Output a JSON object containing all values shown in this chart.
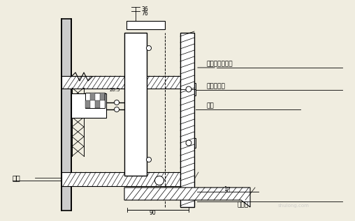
{
  "bg_color": "#f0ede0",
  "line_color": "#000000",
  "annotations": {
    "label1": "邻近头角现浇柱",
    "label2": "石材龙骨线",
    "label3": "法框",
    "label5": "密封胶",
    "label6": "盲丁",
    "dim1": "36",
    "dim2": "76",
    "dim3": "20.5",
    "dim4": "90",
    "dim5": "1厚"
  },
  "figsize": [
    5.08,
    3.17
  ],
  "dpi": 100
}
